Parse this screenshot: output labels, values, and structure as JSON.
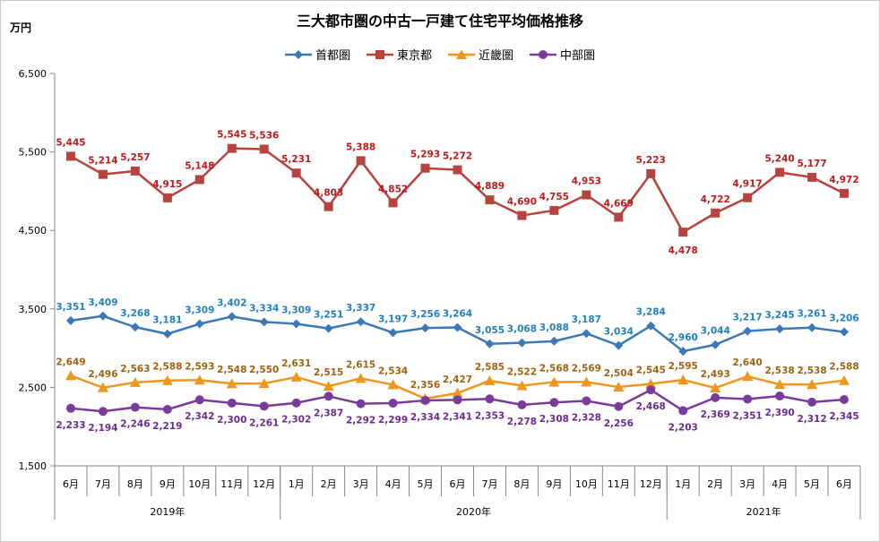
{
  "title": "三大都市圏の中古一戸建て住宅平均価格推移",
  "unit": "万円",
  "chart_data": {
    "type": "line",
    "title": "三大都市圏の中古一戸建て住宅平均価格推移",
    "ylabel": "万円",
    "ylim": [
      1500,
      6500
    ],
    "yticks": [
      "1,500",
      "2,500",
      "3,500",
      "4,500",
      "5,500",
      "6,500"
    ],
    "categories": [
      "6月",
      "7月",
      "8月",
      "9月",
      "10月",
      "11月",
      "12月",
      "1月",
      "2月",
      "3月",
      "4月",
      "5月",
      "6月",
      "7月",
      "8月",
      "9月",
      "10月",
      "11月",
      "12月",
      "1月",
      "2月",
      "3月",
      "4月",
      "5月",
      "6月"
    ],
    "year_groups": [
      {
        "label": "2019年",
        "count": 7
      },
      {
        "label": "2020年",
        "count": 12
      },
      {
        "label": "2021年",
        "count": 6
      }
    ],
    "grid": false,
    "legend_position": "top",
    "series": [
      {
        "name": "首都圏",
        "color": "#3b78b8",
        "label_color": "#1f7fc2",
        "marker": "diamond",
        "values": [
          3351,
          3409,
          3268,
          3181,
          3309,
          3402,
          3334,
          3309,
          3251,
          3337,
          3197,
          3256,
          3264,
          3055,
          3068,
          3088,
          3187,
          3034,
          3284,
          2960,
          3044,
          3217,
          3245,
          3261,
          3206
        ],
        "labels": [
          "3,351",
          "3,409",
          "3,268",
          "3,181",
          "3,309",
          "3,402",
          "3,334",
          "3,309",
          "3,251",
          "3,337",
          "3,197",
          "3,256",
          "3,264",
          "3,055",
          "3,068",
          "3,088",
          "3,187",
          "3,034",
          "3,284",
          "2,960",
          "3,044",
          "3,217",
          "3,245",
          "3,261",
          "3,206"
        ]
      },
      {
        "name": "東京都",
        "color": "#b8423d",
        "label_color": "#c0191b",
        "marker": "square",
        "values": [
          5445,
          5214,
          5257,
          4915,
          5148,
          5545,
          5536,
          5231,
          4803,
          5388,
          4852,
          5293,
          5272,
          4889,
          4690,
          4755,
          4953,
          4669,
          5223,
          4478,
          4722,
          4917,
          5240,
          5177,
          4972
        ],
        "labels": [
          "5,445",
          "5,214",
          "5,257",
          "4,915",
          "5,148",
          "5,545",
          "5,536",
          "5,231",
          "4,803",
          "5,388",
          "4,852",
          "5,293",
          "5,272",
          "4,889",
          "4,690",
          "4,755",
          "4,953",
          "4,669",
          "5,223",
          "4,478",
          "4,722",
          "4,917",
          "5,240",
          "5,177",
          "4,972"
        ]
      },
      {
        "name": "近畿圏",
        "color": "#f0951e",
        "label_color": "#a0620f",
        "marker": "triangle",
        "values": [
          2649,
          2496,
          2563,
          2588,
          2593,
          2548,
          2550,
          2631,
          2515,
          2615,
          2534,
          2356,
          2427,
          2585,
          2522,
          2568,
          2569,
          2504,
          2545,
          2595,
          2493,
          2640,
          2538,
          2538,
          2588
        ],
        "labels": [
          "2,649",
          "2,496",
          "2,563",
          "2,588",
          "2,593",
          "2,548",
          "2,550",
          "2,631",
          "2,515",
          "2,615",
          "2,534",
          "2,356",
          "2,427",
          "2,585",
          "2,522",
          "2,568",
          "2,569",
          "2,504",
          "2,545",
          "2,595",
          "2,493",
          "2,640",
          "2,538",
          "2,538",
          "2,588"
        ]
      },
      {
        "name": "中部圏",
        "color": "#7a3b9c",
        "label_color": "#6a2b93",
        "marker": "circle",
        "values": [
          2233,
          2194,
          2246,
          2219,
          2342,
          2300,
          2261,
          2302,
          2387,
          2292,
          2299,
          2334,
          2341,
          2353,
          2278,
          2308,
          2328,
          2256,
          2468,
          2203,
          2369,
          2351,
          2390,
          2312,
          2345
        ],
        "labels": [
          "2,233",
          "2,194",
          "2,246",
          "2,219",
          "2,342",
          "2,300",
          "2,261",
          "2,302",
          "2,387",
          "2,292",
          "2,299",
          "2,334",
          "2,341",
          "2,353",
          "2,278",
          "2,308",
          "2,328",
          "2,256",
          "2,468",
          "2,203",
          "2,369",
          "2,351",
          "2,390",
          "2,312",
          "2,345"
        ]
      }
    ]
  }
}
